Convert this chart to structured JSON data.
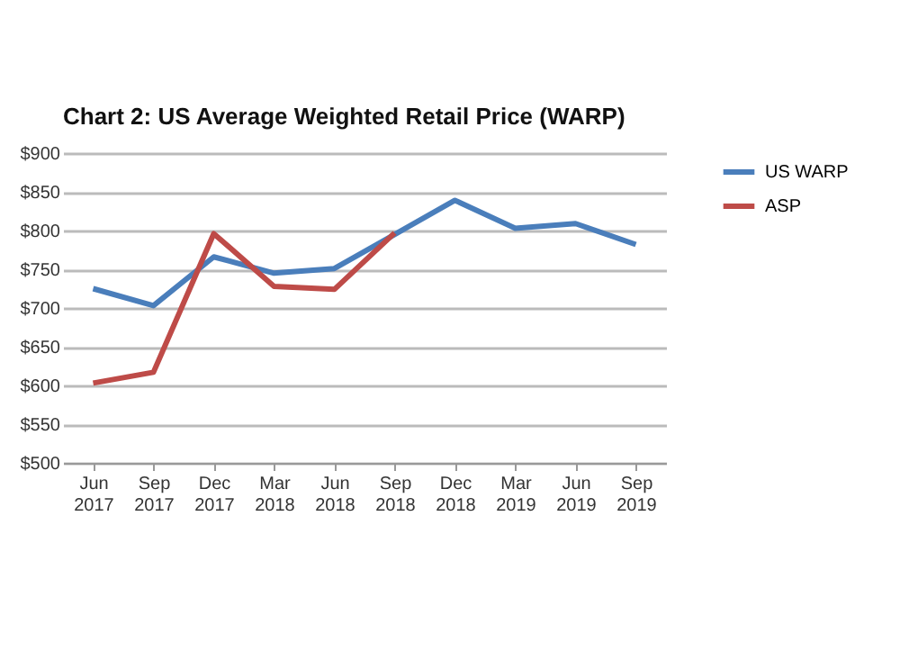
{
  "chart_data": {
    "type": "line",
    "title": "Chart 2: US Average Weighted Retail Price (WARP)",
    "categories": [
      [
        "Jun",
        "2017"
      ],
      [
        "Sep",
        "2017"
      ],
      [
        "Dec",
        "2017"
      ],
      [
        "Mar",
        "2018"
      ],
      [
        "Jun",
        "2018"
      ],
      [
        "Sep",
        "2018"
      ],
      [
        "Dec",
        "2018"
      ],
      [
        "Mar",
        "2019"
      ],
      [
        "Jun",
        "2019"
      ],
      [
        "Sep",
        "2019"
      ]
    ],
    "series": [
      {
        "name": "US WARP",
        "color": "#4a7ebb",
        "values": [
          725,
          703,
          766,
          745,
          751,
          795,
          839,
          803,
          809,
          782
        ]
      },
      {
        "name": "ASP",
        "color": "#be4b48",
        "values": [
          603,
          617,
          796,
          728,
          724,
          797,
          null,
          null,
          null,
          null
        ]
      }
    ],
    "ylim": [
      500,
      900
    ],
    "yticks": [
      {
        "value": 500,
        "label": "$500"
      },
      {
        "value": 550,
        "label": "$550"
      },
      {
        "value": 600,
        "label": "$600"
      },
      {
        "value": 650,
        "label": "$650"
      },
      {
        "value": 700,
        "label": "$700"
      },
      {
        "value": 750,
        "label": "$750"
      },
      {
        "value": 800,
        "label": "$800"
      },
      {
        "value": 850,
        "label": "$850"
      },
      {
        "value": 900,
        "label": "$900"
      }
    ],
    "grid": "y",
    "legend": "right",
    "marker": "none",
    "line_style": "solid"
  }
}
